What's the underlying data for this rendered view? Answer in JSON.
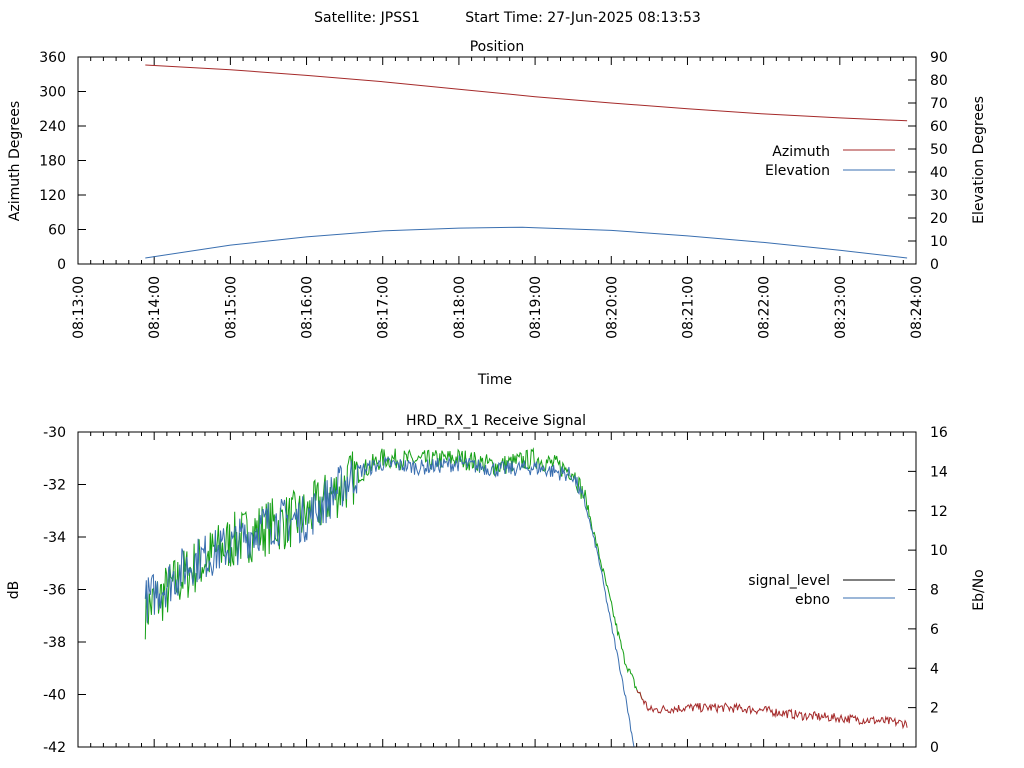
{
  "header": {
    "satellite_label": "Satellite: JPSS1",
    "start_time_label": "Start Time: 27-Jun-2025 08:13:53"
  },
  "colors": {
    "azimuth": "#a52a2a",
    "elevation": "#3a6fb0",
    "signal_level": "#a52a2a",
    "ebno": "#3a6fb0",
    "ebno_green": "#16a016",
    "signal_legend": "#000000"
  },
  "chart_data": [
    {
      "type": "line",
      "title": "Position",
      "xlabel": "Time",
      "ylabel": "Azimuth Degrees",
      "y2label": "Elevation Degrees",
      "xlim": [
        "08:13:00",
        "08:24:00"
      ],
      "xticks": [
        "08:13:00",
        "08:14:00",
        "08:15:00",
        "08:16:00",
        "08:17:00",
        "08:18:00",
        "08:19:00",
        "08:20:00",
        "08:21:00",
        "08:22:00",
        "08:23:00",
        "08:24:00"
      ],
      "ylim": [
        0,
        360
      ],
      "yticks": [
        "0",
        "60",
        "120",
        "180",
        "240",
        "300",
        "360"
      ],
      "y2lim": [
        0,
        90
      ],
      "y2ticks": [
        "0",
        "10",
        "20",
        "30",
        "40",
        "50",
        "60",
        "70",
        "80",
        "90"
      ],
      "legend_position": "right",
      "series": [
        {
          "name": "Azimuth",
          "axis": "y",
          "x": [
            "08:13:53",
            "08:15:00",
            "08:16:00",
            "08:17:00",
            "08:18:00",
            "08:19:00",
            "08:20:00",
            "08:21:00",
            "08:22:00",
            "08:23:00",
            "08:23:53"
          ],
          "values": [
            346,
            338,
            328,
            317,
            304,
            291,
            280,
            270,
            261,
            254,
            249
          ]
        },
        {
          "name": "Elevation",
          "axis": "y2",
          "x": [
            "08:13:53",
            "08:15:00",
            "08:16:00",
            "08:17:00",
            "08:18:00",
            "08:18:50",
            "08:19:00",
            "08:20:00",
            "08:21:00",
            "08:22:00",
            "08:23:00",
            "08:23:53"
          ],
          "values": [
            2.6,
            8.2,
            11.8,
            14.4,
            15.6,
            16.0,
            15.8,
            14.6,
            12.2,
            9.4,
            6.0,
            2.6
          ]
        }
      ]
    },
    {
      "type": "line",
      "title": "HRD_RX_1 Receive Signal",
      "xlabel": "",
      "ylabel": "dB",
      "y2label": "Eb/No",
      "xlim": [
        "08:13:00",
        "08:24:00"
      ],
      "ylim": [
        -42,
        -30
      ],
      "yticks": [
        "-30",
        "-32",
        "-34",
        "-36",
        "-38",
        "-40",
        "-42"
      ],
      "y2lim": [
        0,
        16
      ],
      "y2ticks": [
        "0",
        "2",
        "4",
        "6",
        "8",
        "10",
        "12",
        "14",
        "16"
      ],
      "legend_position": "right",
      "series": [
        {
          "name": "signal_level",
          "axis": "y",
          "x": [
            "08:13:53",
            "08:14:30",
            "08:15:00",
            "08:15:30",
            "08:16:00",
            "08:16:20",
            "08:16:40",
            "08:17:00",
            "08:17:30",
            "08:18:00",
            "08:18:30",
            "08:19:00",
            "08:19:30",
            "08:19:40",
            "08:19:50",
            "08:20:00",
            "08:20:10",
            "08:20:20",
            "08:20:30",
            "08:21:00",
            "08:21:30",
            "08:22:00",
            "08:22:30",
            "08:23:00",
            "08:23:30",
            "08:23:53"
          ],
          "values": [
            -36.8,
            -35.2,
            -34.2,
            -33.6,
            -33.2,
            -32.4,
            -31.6,
            -31.0,
            -31.1,
            -31.0,
            -31.3,
            -31.0,
            -31.5,
            -32.6,
            -34.6,
            -36.6,
            -38.6,
            -39.8,
            -40.6,
            -40.5,
            -40.5,
            -40.6,
            -40.8,
            -40.9,
            -41.0,
            -41.1
          ]
        },
        {
          "name": "ebno",
          "axis": "y2",
          "x": [
            "08:13:53",
            "08:14:30",
            "08:15:00",
            "08:15:30",
            "08:16:00",
            "08:16:20",
            "08:16:40",
            "08:17:00",
            "08:17:30",
            "08:18:00",
            "08:18:30",
            "08:19:00",
            "08:19:30",
            "08:19:40",
            "08:19:50",
            "08:20:00",
            "08:20:10",
            "08:20:18"
          ],
          "values": [
            7.4,
            9.4,
            10.2,
            11.4,
            11.6,
            12.8,
            14.0,
            14.4,
            14.2,
            14.4,
            14.1,
            14.2,
            13.8,
            12.2,
            9.6,
            6.2,
            3.0,
            0.0
          ]
        }
      ]
    }
  ]
}
